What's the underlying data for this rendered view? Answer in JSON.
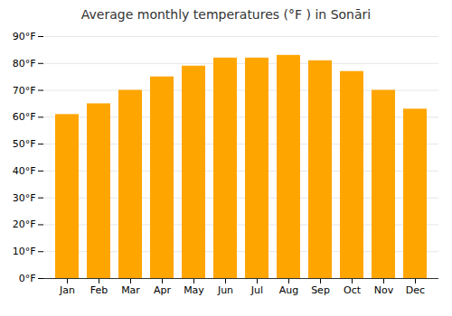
{
  "chart_data": {
    "type": "bar",
    "title": "Average monthly temperatures (°F ) in Sonāri",
    "categories": [
      "Jan",
      "Feb",
      "Mar",
      "Apr",
      "May",
      "Jun",
      "Jul",
      "Aug",
      "Sep",
      "Oct",
      "Nov",
      "Dec"
    ],
    "values": [
      61,
      65,
      70,
      75,
      79,
      82,
      82,
      83,
      81,
      77,
      70,
      63
    ],
    "color": "#FFA500",
    "ylim": [
      0,
      90
    ],
    "yticks": [
      {
        "value": 0,
        "label": "0°F"
      },
      {
        "value": 10,
        "label": "10°F"
      },
      {
        "value": 20,
        "label": "20°F"
      },
      {
        "value": 30,
        "label": "30°F"
      },
      {
        "value": 40,
        "label": "40°F"
      },
      {
        "value": 50,
        "label": "50°F"
      },
      {
        "value": 60,
        "label": "60°F"
      },
      {
        "value": 70,
        "label": "70°F"
      },
      {
        "value": 80,
        "label": "80°F"
      },
      {
        "value": 90,
        "label": "90°F"
      }
    ],
    "grid": true
  }
}
